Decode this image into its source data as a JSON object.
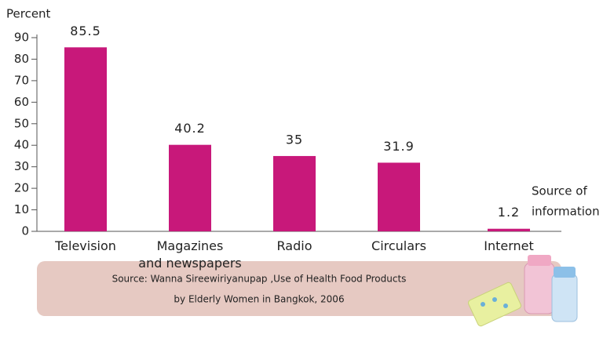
{
  "chart_data": {
    "type": "bar",
    "y_label": "Percent",
    "x_label": [
      "Source of",
      "information"
    ],
    "categories": [
      "Television",
      "Magazines\nand newspapers",
      "Radio",
      "Circulars",
      "Internet"
    ],
    "values": [
      85.5,
      40.2,
      35,
      31.9,
      1.2
    ],
    "color": "#c8187a",
    "ylim": [
      0,
      90
    ],
    "yticks": [
      0,
      10,
      20,
      30,
      40,
      50,
      60,
      70,
      80,
      90
    ],
    "source": [
      "Source: Wanna Sireewiriyanupap ,Use of Health Food Products",
      "by Elderly Women in Bangkok, 2006"
    ]
  }
}
